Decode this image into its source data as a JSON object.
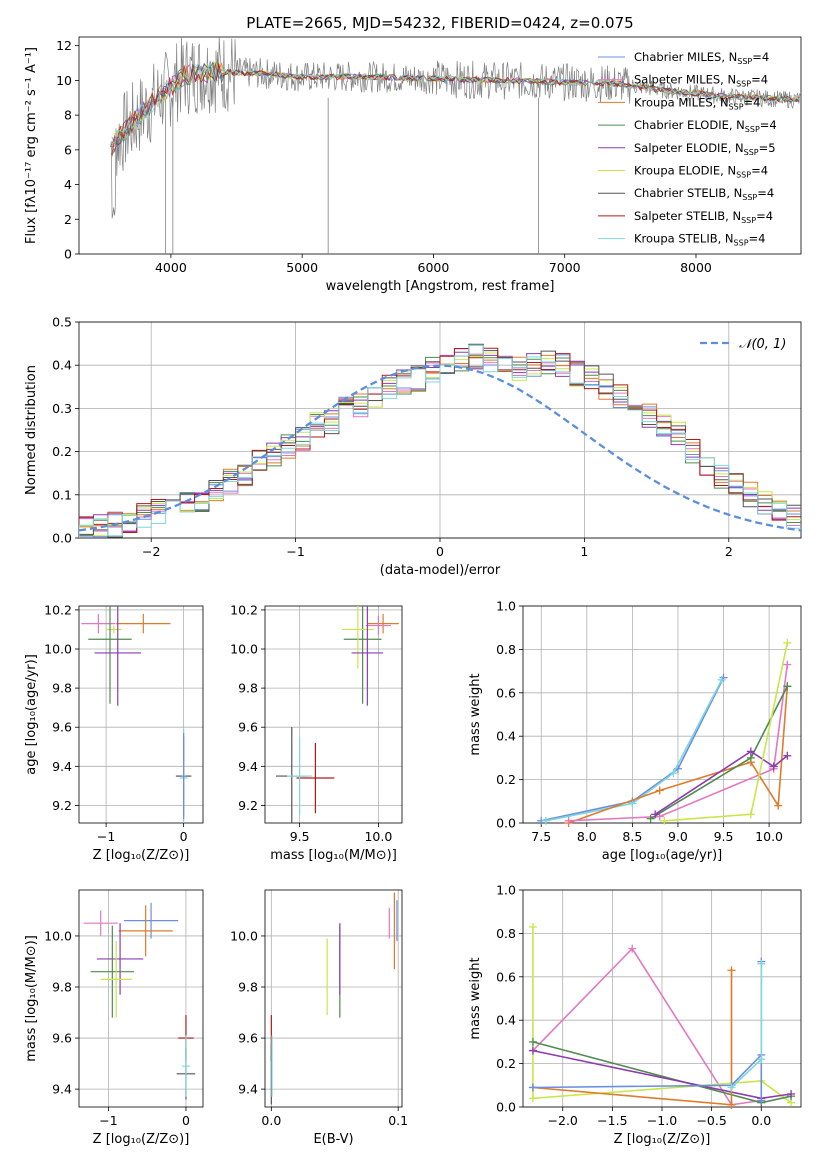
{
  "title": "PLATE=2665, MJD=54232, FIBERID=0424, z=0.075",
  "colors": {
    "chabrier_miles": "#6b8fe0",
    "salpeter_miles": "#e377c2",
    "kroupa_miles": "#e07b29",
    "chabrier_elodie": "#4f8c4f",
    "salpeter_elodie": "#8e3bb0",
    "kroupa_elodie": "#c8e64a",
    "chabrier_stelib": "#555555",
    "salpeter_stelib": "#b01a1a",
    "kroupa_stelib": "#7fd6dc",
    "data": "#808080",
    "gaussian": "#5b8ede"
  },
  "chart_data": [
    {
      "type": "line",
      "id": "spectrum",
      "xlabel": "wavelength [Angstrom, rest frame]",
      "ylabel": "Flux [fλ10⁻¹⁷ erg cm⁻² s⁻¹ A⁻¹]",
      "xlim": [
        3300,
        8800
      ],
      "ylim": [
        0,
        12.5
      ],
      "xticks": [
        "4000",
        "5000",
        "6000",
        "7000",
        "8000"
      ],
      "yticks": [
        "0",
        "2",
        "4",
        "6",
        "8",
        "10",
        "12"
      ],
      "legend": "right",
      "series": [
        {
          "name": "Chabrier MILES, N_SSP=4"
        },
        {
          "name": "Salpeter MILES, N_SSP=4"
        },
        {
          "name": "Kroupa MILES, N_SSP=4"
        },
        {
          "name": "Chabrier ELODIE, N_SSP=4"
        },
        {
          "name": "Salpeter ELODIE, N_SSP=5"
        },
        {
          "name": "Kroupa ELODIE, N_SSP=4"
        },
        {
          "name": "Chabrier STELIB, N_SSP=4"
        },
        {
          "name": "Salpeter STELIB, N_SSP=4"
        },
        {
          "name": "Kroupa STELIB, N_SSP=4"
        }
      ],
      "spectrum_model": {
        "x": [
          3550,
          3700,
          3900,
          4100,
          4300,
          4700,
          5000,
          5500,
          6000,
          6500,
          7000,
          7400,
          7800,
          8200,
          8700
        ],
        "y": [
          6.2,
          7.5,
          9.0,
          10.3,
          10.5,
          10.4,
          10.2,
          10.2,
          10.1,
          10.0,
          9.9,
          9.8,
          9.4,
          9.1,
          8.9
        ]
      }
    },
    {
      "type": "bar",
      "id": "residuals",
      "xlabel": "(data-model)/error",
      "ylabel": "Normed distribution",
      "xlim": [
        -2.5,
        2.5
      ],
      "ylim": [
        0,
        0.5
      ],
      "xticks": [
        "−2",
        "−1",
        "0",
        "1",
        "2"
      ],
      "yticks": [
        "0.0",
        "0.1",
        "0.2",
        "0.3",
        "0.4",
        "0.5"
      ],
      "legend_label": "𝒩(0, 1)",
      "legend": "top-right",
      "bin_width": 0.1,
      "bin_start": -2.5,
      "values": [
        0.02,
        0.025,
        0.03,
        0.04,
        0.05,
        0.06,
        0.07,
        0.08,
        0.09,
        0.11,
        0.13,
        0.15,
        0.18,
        0.19,
        0.21,
        0.23,
        0.26,
        0.27,
        0.3,
        0.31,
        0.33,
        0.35,
        0.36,
        0.37,
        0.39,
        0.4,
        0.41,
        0.42,
        0.41,
        0.4,
        0.39,
        0.4,
        0.41,
        0.4,
        0.38,
        0.37,
        0.35,
        0.33,
        0.3,
        0.28,
        0.26,
        0.24,
        0.2,
        0.17,
        0.14,
        0.12,
        0.1,
        0.08,
        0.07,
        0.05
      ],
      "gaussian": true
    },
    {
      "type": "scatter",
      "id": "age_vs_Z",
      "xlabel": "Z [log₁₀(Z/Z⊙)]",
      "ylabel": "age  [log₁₀(age/yr)]",
      "xlim": [
        -1.35,
        0.25
      ],
      "ylim": [
        9.11,
        10.22
      ],
      "xticks": [
        "−1",
        "0"
      ],
      "yticks": [
        "9.2",
        "9.4",
        "9.6",
        "9.8",
        "10.0",
        "10.2"
      ],
      "points": [
        {
          "x": -1.1,
          "y": 10.13,
          "xerr": 0.22,
          "yerr": 0.05,
          "c": "salpeter_miles"
        },
        {
          "x": -0.52,
          "y": 10.13,
          "xerr": 0.35,
          "yerr": 0.05,
          "c": "kroupa_miles"
        },
        {
          "x": -0.9,
          "y": 10.1,
          "xerr": 0.1,
          "yerr": 0.02,
          "c": "kroupa_elodie"
        },
        {
          "x": -0.95,
          "y": 10.05,
          "xerr": 0.28,
          "yerr": 0.33,
          "c": "chabrier_elodie"
        },
        {
          "x": -0.85,
          "y": 9.98,
          "xerr": 0.3,
          "yerr": 0.27,
          "c": "salpeter_elodie"
        },
        {
          "x": 0.0,
          "y": 9.35,
          "xerr": 0.1,
          "yerr": 0.2,
          "c": "chabrier_stelib"
        },
        {
          "x": 0.0,
          "y": 9.34,
          "xerr": 0.05,
          "yerr": 0.25,
          "c": "kroupa_stelib"
        },
        {
          "x": 0.0,
          "y": 9.35,
          "xerr": 0.03,
          "yerr": 0.22,
          "c": "chabrier_miles"
        }
      ]
    },
    {
      "type": "scatter",
      "id": "age_vs_mass",
      "xlabel": "mass [log₁₀(M/M⊙)]",
      "ylabel": "",
      "xlim": [
        9.28,
        10.15
      ],
      "ylim": [
        9.11,
        10.22
      ],
      "xticks": [
        "9.5",
        "10.0"
      ],
      "yticks": [
        "9.2",
        "9.4",
        "9.6",
        "9.8",
        "10.0",
        "10.2"
      ],
      "points": [
        {
          "x": 10.03,
          "y": 10.13,
          "xerr": 0.1,
          "yerr": 0.05,
          "c": "kroupa_miles"
        },
        {
          "x": 10.0,
          "y": 10.12,
          "xerr": 0.08,
          "yerr": 0.05,
          "c": "salpeter_miles"
        },
        {
          "x": 9.9,
          "y": 10.05,
          "xerr": 0.12,
          "yerr": 0.33,
          "c": "chabrier_elodie"
        },
        {
          "x": 9.87,
          "y": 10.1,
          "xerr": 0.1,
          "yerr": 0.2,
          "c": "kroupa_elodie"
        },
        {
          "x": 9.93,
          "y": 9.98,
          "xerr": 0.1,
          "yerr": 0.27,
          "c": "salpeter_elodie"
        },
        {
          "x": 9.45,
          "y": 9.35,
          "xerr": 0.1,
          "yerr": 0.25,
          "c": "chabrier_stelib"
        },
        {
          "x": 9.6,
          "y": 9.34,
          "xerr": 0.12,
          "yerr": 0.18,
          "c": "salpeter_stelib"
        },
        {
          "x": 9.5,
          "y": 9.35,
          "xerr": 0.08,
          "yerr": 0.2,
          "c": "kroupa_stelib"
        }
      ]
    },
    {
      "type": "line",
      "id": "mass_weight_vs_age",
      "xlabel": "age  [log₁₀(age/yr)]",
      "ylabel": "mass weight",
      "xlim": [
        7.3,
        10.35
      ],
      "ylim": [
        0,
        1.0
      ],
      "xticks": [
        "7.5",
        "8.0",
        "8.5",
        "9.0",
        "9.5",
        "10.0"
      ],
      "yticks": [
        "0.0",
        "0.2",
        "0.4",
        "0.6",
        "0.8",
        "1.0"
      ],
      "series": [
        {
          "c": "chabrier_miles",
          "x": [
            7.5,
            8.5,
            9.0,
            9.5
          ],
          "y": [
            0.01,
            0.1,
            0.25,
            0.67
          ]
        },
        {
          "c": "kroupa_stelib",
          "x": [
            7.55,
            8.5,
            8.95,
            9.48
          ],
          "y": [
            0.01,
            0.09,
            0.23,
            0.66
          ]
        },
        {
          "c": "kroupa_miles",
          "x": [
            7.8,
            8.8,
            9.8,
            10.1,
            10.2
          ],
          "y": [
            0.0,
            0.15,
            0.28,
            0.08,
            0.63
          ]
        },
        {
          "c": "salpeter_miles",
          "x": [
            7.8,
            8.8,
            10.05,
            10.2
          ],
          "y": [
            0.01,
            0.03,
            0.25,
            0.73
          ]
        },
        {
          "c": "chabrier_elodie",
          "x": [
            8.7,
            9.8,
            10.2
          ],
          "y": [
            0.02,
            0.3,
            0.63
          ]
        },
        {
          "c": "salpeter_elodie",
          "x": [
            8.75,
            9.8,
            10.05,
            10.2
          ],
          "y": [
            0.04,
            0.33,
            0.26,
            0.31
          ]
        },
        {
          "c": "kroupa_elodie",
          "x": [
            8.85,
            9.8,
            10.2
          ],
          "y": [
            0.01,
            0.04,
            0.83
          ]
        }
      ]
    },
    {
      "type": "scatter",
      "id": "mass_vs_Z",
      "xlabel": "Z [log₁₀(Z/Z⊙)]",
      "ylabel": "mass [log₁₀(M/M⊙)]",
      "xlim": [
        -1.38,
        0.22
      ],
      "ylim": [
        9.33,
        10.18
      ],
      "xticks": [
        "−1",
        "0"
      ],
      "yticks": [
        "9.4",
        "9.6",
        "9.8",
        "10.0"
      ],
      "points": [
        {
          "x": -1.1,
          "y": 10.05,
          "xerr": 0.22,
          "yerr": 0.05,
          "c": "salpeter_miles"
        },
        {
          "x": -0.45,
          "y": 10.06,
          "xerr": 0.35,
          "yerr": 0.07,
          "c": "chabrier_miles"
        },
        {
          "x": -0.52,
          "y": 10.02,
          "xerr": 0.35,
          "yerr": 0.1,
          "c": "kroupa_miles"
        },
        {
          "x": -0.85,
          "y": 9.91,
          "xerr": 0.3,
          "yerr": 0.14,
          "c": "salpeter_elodie"
        },
        {
          "x": -0.95,
          "y": 9.86,
          "xerr": 0.28,
          "yerr": 0.18,
          "c": "chabrier_elodie"
        },
        {
          "x": -0.9,
          "y": 9.83,
          "xerr": 0.2,
          "yerr": 0.15,
          "c": "kroupa_elodie"
        },
        {
          "x": 0.0,
          "y": 9.6,
          "xerr": 0.1,
          "yerr": 0.09,
          "c": "salpeter_stelib"
        },
        {
          "x": 0.0,
          "y": 9.46,
          "xerr": 0.12,
          "yerr": 0.1,
          "c": "chabrier_stelib"
        },
        {
          "x": 0.0,
          "y": 9.49,
          "xerr": 0.05,
          "yerr": 0.12,
          "c": "kroupa_stelib"
        }
      ]
    },
    {
      "type": "scatter",
      "id": "mass_vs_ebv",
      "xlabel": "E(B-V)",
      "ylabel": "",
      "xlim": [
        -0.005,
        0.103
      ],
      "ylim": [
        9.33,
        10.18
      ],
      "xticks": [
        "0.0",
        "0.1"
      ],
      "yticks": [
        "9.4",
        "9.6",
        "9.8",
        "10.0"
      ],
      "points": [
        {
          "x": 0.0,
          "y": 9.6,
          "xerr": 0.0,
          "yerr": 0.09,
          "c": "salpeter_stelib"
        },
        {
          "x": 0.0,
          "y": 9.46,
          "xerr": 0.0,
          "yerr": 0.12,
          "c": "chabrier_stelib"
        },
        {
          "x": 0.0005,
          "y": 9.49,
          "xerr": 0.0,
          "yerr": 0.12,
          "c": "kroupa_stelib"
        },
        {
          "x": 0.044,
          "y": 9.84,
          "xerr": 0.0,
          "yerr": 0.15,
          "c": "kroupa_elodie"
        },
        {
          "x": 0.054,
          "y": 9.86,
          "xerr": 0.0,
          "yerr": 0.18,
          "c": "chabrier_elodie"
        },
        {
          "x": 0.054,
          "y": 9.91,
          "xerr": 0.0,
          "yerr": 0.14,
          "c": "salpeter_elodie"
        },
        {
          "x": 0.093,
          "y": 10.05,
          "xerr": 0.0,
          "yerr": 0.06,
          "c": "salpeter_miles"
        },
        {
          "x": 0.097,
          "y": 10.02,
          "xerr": 0.0,
          "yerr": 0.15,
          "c": "kroupa_miles"
        },
        {
          "x": 0.099,
          "y": 10.06,
          "xerr": 0.0,
          "yerr": 0.08,
          "c": "chabrier_miles"
        }
      ]
    },
    {
      "type": "line",
      "id": "mass_weight_vs_Z",
      "xlabel": "Z [log₁₀(Z/Z⊙)]",
      "ylabel": "mass weight",
      "xlim": [
        -2.4,
        0.4
      ],
      "ylim": [
        0,
        1.0
      ],
      "xticks": [
        "−2.0",
        "−1.5",
        "−1.0",
        "−0.5",
        "0.0"
      ],
      "yticks": [
        "0.0",
        "0.2",
        "0.4",
        "0.6",
        "0.8",
        "1.0"
      ],
      "series": [
        {
          "c": "salpeter_miles",
          "x": [
            -2.3,
            -1.3,
            -0.3,
            0.0
          ],
          "y": [
            0.26,
            0.73,
            0.01,
            0.03
          ]
        },
        {
          "c": "kroupa_elodie",
          "x": [
            -2.3,
            -2.3,
            0.0,
            0.3
          ],
          "y": [
            0.83,
            0.04,
            0.12,
            0.02
          ]
        },
        {
          "c": "chabrier_elodie",
          "x": [
            -2.3,
            0.0,
            0.3
          ],
          "y": [
            0.3,
            0.02,
            0.05
          ]
        },
        {
          "c": "salpeter_elodie",
          "x": [
            -2.3,
            0.0,
            0.3
          ],
          "y": [
            0.26,
            0.04,
            0.06
          ]
        },
        {
          "c": "kroupa_miles",
          "x": [
            -2.3,
            -0.3,
            -0.3
          ],
          "y": [
            0.09,
            0.01,
            0.63
          ]
        },
        {
          "c": "chabrier_miles",
          "x": [
            -2.3,
            -0.3,
            0.0,
            0.0,
            0.0
          ],
          "y": [
            0.09,
            0.1,
            0.24,
            0.67,
            0.03
          ]
        },
        {
          "c": "kroupa_stelib",
          "x": [
            -0.3,
            0.0,
            0.0
          ],
          "y": [
            0.09,
            0.22,
            0.66
          ]
        }
      ]
    }
  ]
}
